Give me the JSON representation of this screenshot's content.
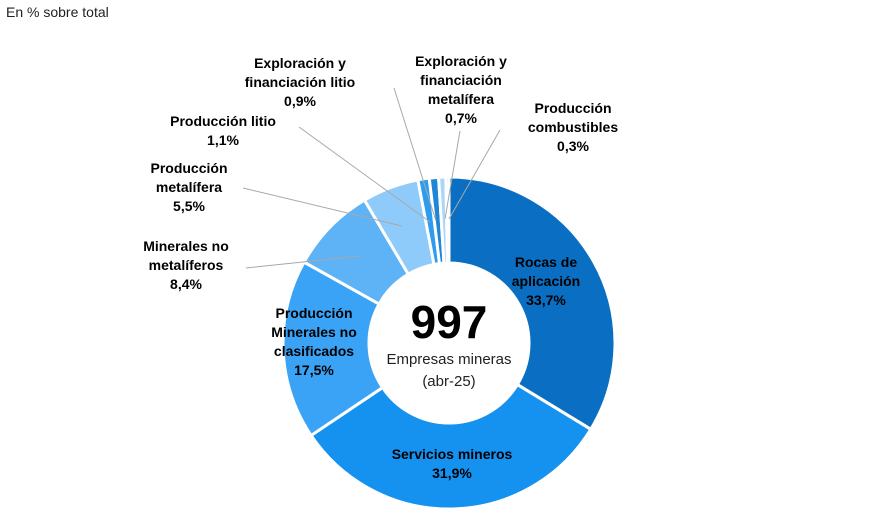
{
  "header": {
    "subtitle": "En % sobre total"
  },
  "chart_data": {
    "type": "pie",
    "subtitle": "En % sobre total",
    "center": {
      "total": "997",
      "line1": "Empresas mineras",
      "line2": "(abr-25)"
    },
    "slices": [
      {
        "label": [
          "Rocas de",
          "aplicación"
        ],
        "pct_text": "33,7%",
        "value": 33.7,
        "color": "#0a6fc2"
      },
      {
        "label": [
          "Servicios mineros"
        ],
        "pct_text": "31,9%",
        "value": 31.9,
        "color": "#1591ef"
      },
      {
        "label": [
          "Producción",
          "Minerales no",
          "clasificados"
        ],
        "pct_text": "17,5%",
        "value": 17.5,
        "color": "#3aa3f5"
      },
      {
        "label": [
          "Minerales no",
          "metalíferos"
        ],
        "pct_text": "8,4%",
        "value": 8.4,
        "color": "#5db3f6"
      },
      {
        "label": [
          "Producción",
          "metalífera"
        ],
        "pct_text": "5,5%",
        "value": 5.5,
        "color": "#8fcbfa"
      },
      {
        "label": [
          "Producción litio"
        ],
        "pct_text": "1,1%",
        "value": 1.1,
        "color": "#2d9cf0"
      },
      {
        "label": [
          "Exploración y",
          "financiación litio"
        ],
        "pct_text": "0,9%",
        "value": 0.9,
        "color": "#1e86d8"
      },
      {
        "label": [
          "Exploración y",
          "financiación",
          "metalífera"
        ],
        "pct_text": "0,7%",
        "value": 0.7,
        "color": "#a9d6fb"
      },
      {
        "label": [
          "Producción",
          "combustibles"
        ],
        "pct_text": "0,3%",
        "value": 0.3,
        "color": "#0e5ea8"
      }
    ]
  }
}
